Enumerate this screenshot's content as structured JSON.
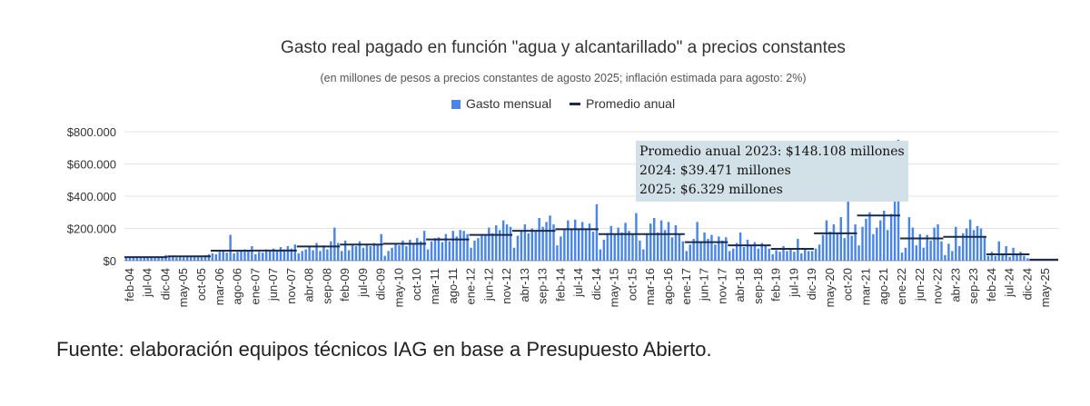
{
  "chart_data": {
    "type": "bar",
    "title": "Gasto real pagado en función \"agua y alcantarillado\" a precios constantes",
    "subtitle": "(en millones de pesos a precios constantes de agosto 2025; inflación estimada para agosto: 2%)",
    "legend": [
      "Gasto mensual",
      "Promedio anual"
    ],
    "legend_position": "top",
    "y_ticks": [
      "$0",
      "$200.000",
      "$400.000",
      "$600.000",
      "$800.000"
    ],
    "ylim": [
      0,
      800000
    ],
    "x_tick_labels": [
      "feb-04",
      "jul-04",
      "dic-04",
      "may-05",
      "oct-05",
      "mar-06",
      "ago-06",
      "ene-07",
      "jun-07",
      "nov-07",
      "abr-08",
      "sep-08",
      "feb-09",
      "jul-09",
      "dic-09",
      "may-10",
      "oct-10",
      "mar-11",
      "ago-11",
      "ene-12",
      "jun-12",
      "nov-12",
      "abr-13",
      "sep-13",
      "feb-14",
      "jul-14",
      "dic-14",
      "may-15",
      "oct-15",
      "mar-16",
      "ago-16",
      "ene-17",
      "jun-17",
      "nov-17",
      "abr-18",
      "sep-18",
      "feb-19",
      "jul-19",
      "dic-19",
      "may-20",
      "oct-20",
      "mar-21",
      "ago-21",
      "ene-22",
      "jun-22",
      "nov-22",
      "abr-23",
      "sep-23",
      "feb-24",
      "jul-24",
      "dic-24",
      "may-25"
    ],
    "series": [
      {
        "name": "Gasto mensual",
        "color": "#4a86e8",
        "months_start": "2004-01",
        "values": [
          18000,
          20000,
          18000,
          22000,
          16000,
          20000,
          19000,
          21000,
          17000,
          22000,
          20000,
          35000,
          22000,
          24000,
          20000,
          26000,
          21000,
          28000,
          24000,
          30000,
          25000,
          32000,
          34000,
          40000,
          45000,
          40000,
          55000,
          60000,
          50000,
          160000,
          45000,
          55000,
          60000,
          70000,
          65000,
          90000,
          40000,
          55000,
          50000,
          70000,
          60000,
          75000,
          65000,
          85000,
          70000,
          90000,
          75000,
          100000,
          45000,
          60000,
          70000,
          90000,
          65000,
          110000,
          60000,
          95000,
          70000,
          120000,
          205000,
          110000,
          60000,
          125000,
          65000,
          95000,
          90000,
          120000,
          80000,
          105000,
          90000,
          110000,
          100000,
          165000,
          30000,
          60000,
          80000,
          110000,
          95000,
          125000,
          90000,
          130000,
          105000,
          140000,
          120000,
          185000,
          70000,
          120000,
          140000,
          145000,
          115000,
          165000,
          120000,
          185000,
          150000,
          190000,
          185000,
          165000,
          80000,
          125000,
          140000,
          165000,
          155000,
          205000,
          170000,
          220000,
          190000,
          250000,
          225000,
          210000,
          80000,
          155000,
          185000,
          225000,
          170000,
          200000,
          190000,
          265000,
          210000,
          240000,
          280000,
          225000,
          95000,
          150000,
          190000,
          250000,
          200000,
          255000,
          200000,
          240000,
          190000,
          230000,
          180000,
          350000,
          70000,
          130000,
          170000,
          215000,
          160000,
          205000,
          175000,
          235000,
          185000,
          165000,
          295000,
          125000,
          70000,
          170000,
          230000,
          265000,
          175000,
          250000,
          190000,
          240000,
          145000,
          220000,
          160000,
          120000,
          60000,
          100000,
          135000,
          240000,
          120000,
          175000,
          135000,
          160000,
          100000,
          150000,
          125000,
          145000,
          60000,
          75000,
          110000,
          175000,
          85000,
          130000,
          90000,
          115000,
          75000,
          110000,
          90000,
          75000,
          40000,
          65000,
          55000,
          90000,
          60000,
          75000,
          55000,
          135000,
          45000,
          70000,
          60000,
          60000,
          75000,
          100000,
          160000,
          250000,
          180000,
          225000,
          170000,
          270000,
          140000,
          395000,
          155000,
          225000,
          95000,
          210000,
          260000,
          300000,
          165000,
          205000,
          250000,
          310000,
          190000,
          290000,
          610000,
          750000,
          50000,
          80000,
          270000,
          205000,
          95000,
          165000,
          80000,
          160000,
          125000,
          205000,
          225000,
          120000,
          35000,
          105000,
          60000,
          210000,
          90000,
          170000,
          200000,
          255000,
          190000,
          215000,
          200000,
          150000,
          30000,
          55000,
          30000,
          120000,
          40000,
          90000,
          25000,
          80000,
          35000,
          55000,
          30000,
          15000,
          8000,
          10000,
          6000,
          8000,
          5000,
          7000,
          5000,
          4000
        ]
      },
      {
        "name": "Promedio anual",
        "color": "#1c2a4a",
        "annual_averages": [
          {
            "year": 2004,
            "value": 22000
          },
          {
            "year": 2005,
            "value": 27000
          },
          {
            "year": 2006,
            "value": 62000
          },
          {
            "year": 2007,
            "value": 63000
          },
          {
            "year": 2008,
            "value": 88000
          },
          {
            "year": 2009,
            "value": 100000
          },
          {
            "year": 2010,
            "value": 105000
          },
          {
            "year": 2011,
            "value": 132000
          },
          {
            "year": 2012,
            "value": 160000
          },
          {
            "year": 2013,
            "value": 185000
          },
          {
            "year": 2014,
            "value": 195000
          },
          {
            "year": 2015,
            "value": 165000
          },
          {
            "year": 2016,
            "value": 165000
          },
          {
            "year": 2017,
            "value": 115000
          },
          {
            "year": 2018,
            "value": 95000
          },
          {
            "year": 2019,
            "value": 73000
          },
          {
            "year": 2020,
            "value": 170000
          },
          {
            "year": 2021,
            "value": 280000
          },
          {
            "year": 2022,
            "value": 138000
          },
          {
            "year": 2023,
            "value": 148108
          },
          {
            "year": 2024,
            "value": 39471
          },
          {
            "year": 2025,
            "value": 6329
          }
        ]
      }
    ],
    "annotation": [
      "Promedio anual 2023: $148.108 millones",
      "2024: $39.471 millones",
      "2025: $6.329 millones"
    ],
    "grid": true
  },
  "source_note": "Fuente: elaboración equipos técnicos IAG en base a Presupuesto Abierto."
}
